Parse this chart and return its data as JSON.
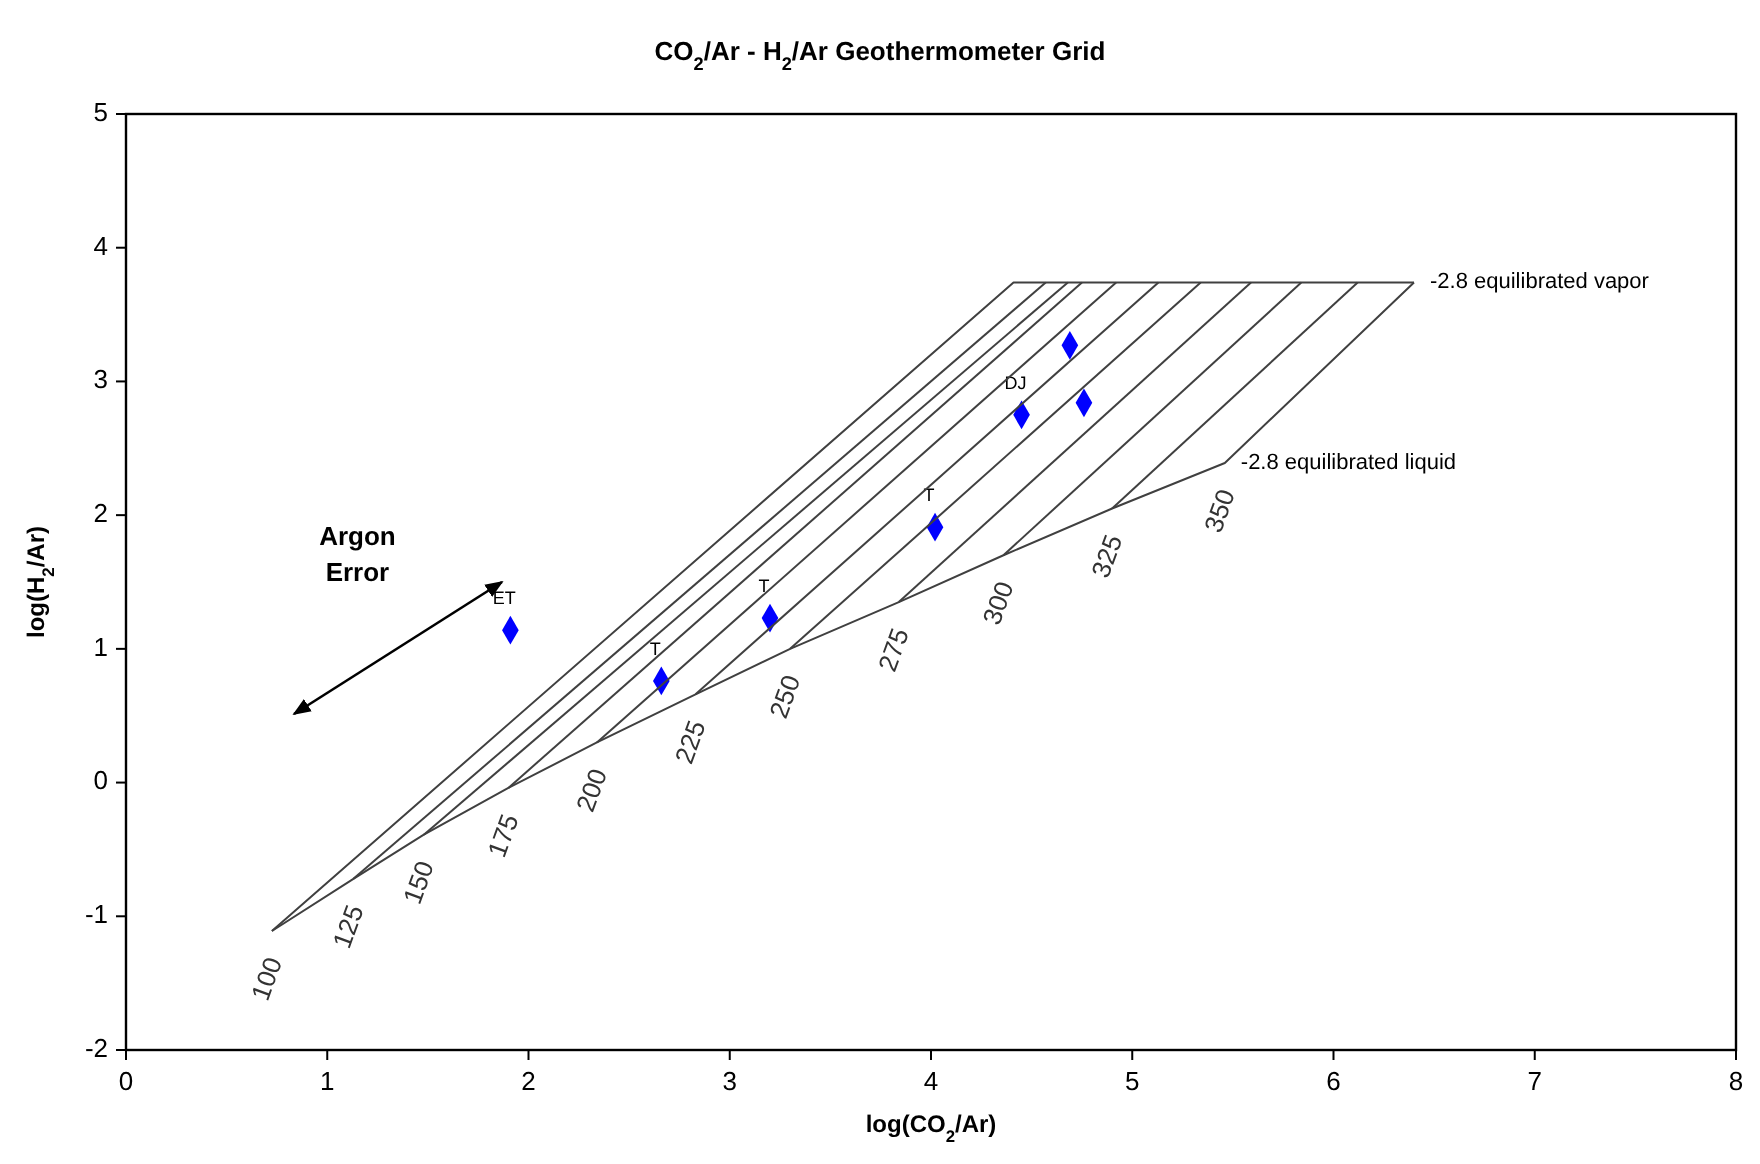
{
  "chart_data": {
    "type": "scatter",
    "title": "CO$_{2}$/Ar - H$_{2}$/Ar Geothermometer Grid",
    "xlabel": "log(CO$_{2}$/Ar)",
    "ylabel": "log(H$_{2}$/Ar)",
    "xlim": [
      0,
      8
    ],
    "xticks": [
      0,
      1,
      2,
      3,
      4,
      5,
      6,
      7,
      8
    ],
    "ylim": [
      -2,
      5
    ],
    "yticks": [
      -2,
      -1,
      0,
      1,
      2,
      3,
      4,
      5
    ],
    "grid": false,
    "marker": "diamond",
    "series": [
      {
        "color": "#0000ff",
        "x": [
          1.91,
          2.66,
          3.2,
          4.02,
          4.45,
          4.69,
          4.76
        ],
        "values": [
          1.14,
          0.76,
          1.23,
          1.91,
          2.75,
          3.27,
          2.84
        ],
        "value_labels": [
          "ET",
          "T",
          "T",
          "T",
          "DJ",
          null,
          null
        ]
      },
      {
        "type": "line",
        "name": "350",
        "color": "#404040",
        "marker": "none",
        "x": [
          0.725,
          1.13,
          1.48,
          1.9,
          2.34,
          2.83,
          3.3,
          3.84,
          4.36,
          4.9,
          5.46,
          6.4
        ],
        "values": [
          -1.11,
          -0.72,
          -0.39,
          -0.04,
          0.3,
          0.66,
          1.0,
          1.35,
          1.7,
          2.05,
          2.39,
          3.74
        ]
      },
      {
        "type": "line",
        "name": "100",
        "color": "#404040",
        "marker": "none",
        "x": [
          0.725,
          4.41,
          6.4
        ],
        "values": [
          -1.11,
          3.74,
          3.74
        ]
      },
      {
        "type": "line",
        "name": "125",
        "color": "#404040",
        "marker": "none",
        "x": [
          1.13,
          4.57
        ],
        "values": [
          -0.72,
          3.74
        ]
      },
      {
        "type": "line",
        "name": "150",
        "color": "#404040",
        "marker": "none",
        "x": [
          1.48,
          4.68
        ],
        "values": [
          -0.39,
          3.74
        ]
      },
      {
        "type": "line",
        "name": "175",
        "color": "#404040",
        "marker": "none",
        "x": [
          1.9,
          4.75
        ],
        "values": [
          -0.04,
          3.74
        ]
      },
      {
        "type": "line",
        "name": "200",
        "color": "#404040",
        "marker": "none",
        "x": [
          2.34,
          4.92
        ],
        "values": [
          0.3,
          3.74
        ]
      },
      {
        "type": "line",
        "name": "225",
        "color": "#404040",
        "marker": "none",
        "x": [
          2.83,
          5.13
        ],
        "values": [
          0.66,
          3.74
        ]
      },
      {
        "type": "line",
        "name": "250",
        "color": "#404040",
        "marker": "none",
        "x": [
          3.3,
          5.34
        ],
        "values": [
          1.0,
          3.74
        ]
      },
      {
        "type": "line",
        "name": "275",
        "color": "#404040",
        "marker": "none",
        "x": [
          3.84,
          5.59
        ],
        "values": [
          1.35,
          3.74
        ]
      },
      {
        "type": "line",
        "name": "300",
        "color": "#404040",
        "marker": "none",
        "x": [
          4.36,
          5.84
        ],
        "values": [
          1.7,
          3.74
        ]
      },
      {
        "type": "line",
        "name": "325",
        "color": "#404040",
        "marker": "none",
        "x": [
          4.9,
          6.12
        ],
        "values": [
          2.05,
          3.74
        ]
      }
    ],
    "annotations": [
      {
        "text": "-2.8 equilibrated vapor",
        "x": 6.4,
        "y": 3.74
      },
      {
        "text": "-2.8 equilibrated liquid",
        "x": 5.46,
        "y": 2.39
      },
      "Argon Error"
    ]
  }
}
